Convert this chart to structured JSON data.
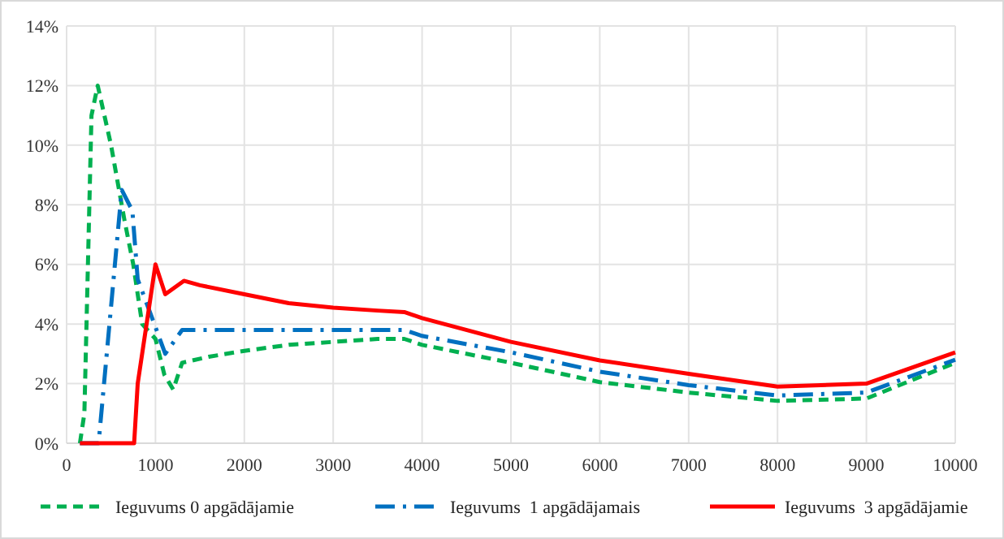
{
  "chart_data": {
    "type": "line",
    "xlim": [
      0,
      10000
    ],
    "xticks": [
      0,
      1000,
      2000,
      3000,
      4000,
      5000,
      6000,
      7000,
      8000,
      9000,
      10000
    ],
    "ylim": [
      0,
      14
    ],
    "yticks": [
      {
        "value": 0,
        "label": "0%"
      },
      {
        "value": 2,
        "label": "2%"
      },
      {
        "value": 4,
        "label": "4%"
      },
      {
        "value": 6,
        "label": "6%"
      },
      {
        "value": 8,
        "label": "8%"
      },
      {
        "value": 10,
        "label": "10%"
      },
      {
        "value": 12,
        "label": "12%"
      },
      {
        "value": 14,
        "label": "14%"
      }
    ],
    "grid": true,
    "legend": "bottom",
    "series": [
      {
        "name": "Ieguvums 0 apgādājamie",
        "color": "#00b050",
        "line_style": "dashed",
        "x": [
          150,
          200,
          280,
          350,
          500,
          650,
          750,
          850,
          1000,
          1100,
          1200,
          1300,
          1600,
          2000,
          2500,
          3000,
          3500,
          3800,
          4000,
          5000,
          6000,
          7000,
          8000,
          9000,
          10000
        ],
        "values": [
          0,
          1,
          11,
          12,
          10,
          7.5,
          6,
          4,
          3.5,
          2.3,
          1.8,
          2.7,
          2.9,
          3.1,
          3.3,
          3.4,
          3.5,
          3.5,
          3.3,
          2.7,
          2.05,
          1.7,
          1.42,
          1.5,
          2.7
        ]
      },
      {
        "name": "Ieguvums  1 apgādājamais",
        "color": "#0070c0",
        "line_style": "dashdot",
        "x": [
          150,
          360,
          620,
          740,
          800,
          950,
          1110,
          1300,
          2000,
          3000,
          3800,
          4000,
          5000,
          6000,
          7000,
          8000,
          9000,
          10000
        ],
        "values": [
          0,
          0,
          8.5,
          7.8,
          5.5,
          4.3,
          3.0,
          3.8,
          3.8,
          3.8,
          3.8,
          3.6,
          3.05,
          2.4,
          1.95,
          1.6,
          1.7,
          2.8
        ]
      },
      {
        "name": "Ieguvums  3 apgādājamie",
        "color": "#ff0000",
        "line_style": "solid",
        "x": [
          150,
          760,
          800,
          1000,
          1110,
          1320,
          1500,
          2000,
          2500,
          3000,
          3500,
          3800,
          4000,
          5000,
          6000,
          7000,
          8000,
          9000,
          10000
        ],
        "values": [
          0,
          0,
          2,
          6,
          5.0,
          5.45,
          5.3,
          5.0,
          4.7,
          4.55,
          4.45,
          4.4,
          4.2,
          3.4,
          2.78,
          2.33,
          1.9,
          2.0,
          3.05
        ]
      }
    ]
  }
}
